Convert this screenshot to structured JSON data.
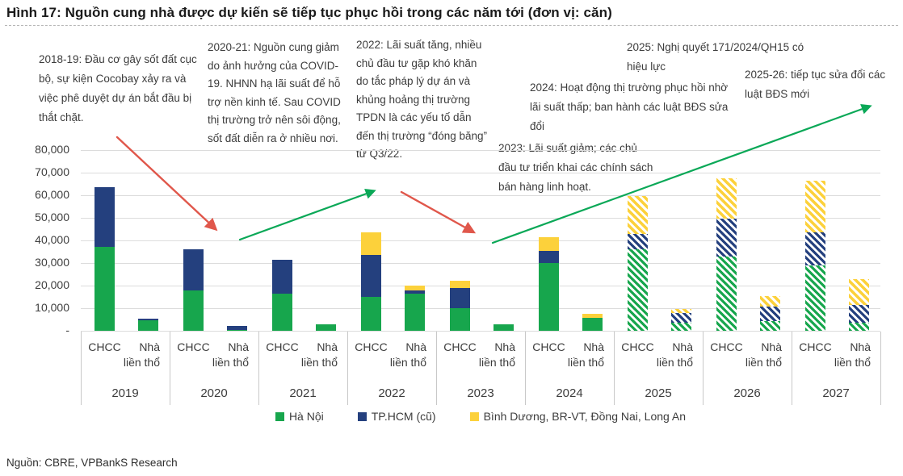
{
  "title": "Hình 17: Nguồn cung nhà được dự kiến sẽ tiếp tục phục hồi trong các năm tới (đơn vị: căn)",
  "source": "Nguồn: CBRE, VPBankS Research",
  "annotations": [
    {
      "text": "2018-19: Đầu cơ gây sốt đất cục bộ, sự kiện Cocobay xảy ra và việc phê duyệt dự án bắt đầu bị thắt chặt."
    },
    {
      "text": "2020-21: Nguồn cung giảm do ảnh hưởng của COVID-19. NHNN hạ lãi suất để hỗ trợ nền kinh tế. Sau COVID thị trường trở nên sôi động, sốt đất diễn ra ở nhiều nơi."
    },
    {
      "text": "2022: Lãi suất tăng, nhiều chủ đầu tư gặp khó khăn do tắc pháp lý dự án và khủng hoảng thị trường TPDN là các yếu tố dẫn đến thị trường “đóng băng” từ Q3/22."
    },
    {
      "text": "2023: Lãi suất giảm; các chủ đầu tư triển khai các chính sách bán hàng linh hoạt."
    },
    {
      "text": "2024: Hoạt động thị trường phục hồi nhờ lãi suất thấp; ban hành các luật BĐS sửa đổi"
    },
    {
      "text": "2025: Nghị quyết 171/2024/QH15 có hiệu lực"
    },
    {
      "text": "2025-26: tiếp tục sửa đổi các luật BĐS mới"
    }
  ],
  "arrows": [
    {
      "color": "#e0574b",
      "direction": "down"
    },
    {
      "color": "#0aa857",
      "direction": "up"
    },
    {
      "color": "#e0574b",
      "direction": "down"
    },
    {
      "color": "#0aa857",
      "direction": "up"
    }
  ],
  "chart_data": {
    "type": "bar",
    "stacked": true,
    "unit": "căn",
    "title": "Nguồn cung nhà được dự kiến sẽ tiếp tục phục hồi trong các năm tới",
    "ylim": [
      0,
      80000
    ],
    "grid": true,
    "legend_position": "bottom",
    "y_ticks": [
      "80,000",
      "70,000",
      "60,000",
      "50,000",
      "40,000",
      "30,000",
      "20,000",
      "10,000",
      "-"
    ],
    "bar_labels": [
      "CHCC",
      "Nhà liền thổ"
    ],
    "series": [
      {
        "name": "Hà Nội",
        "color": "#17a64d"
      },
      {
        "name": "TP.HCM (cũ)",
        "color": "#24407e"
      },
      {
        "name": "Bình Dương, BR-VT, Đồng Nai, Long An",
        "color": "#fcd13b"
      }
    ],
    "groups": [
      {
        "year": "2019",
        "forecast": false,
        "bars": [
          {
            "label": "CHCC",
            "values": [
              37000,
              26500,
              0
            ]
          },
          {
            "label": "Nhà liền thổ",
            "values": [
              4500,
              800,
              0
            ]
          }
        ]
      },
      {
        "year": "2020",
        "forecast": false,
        "bars": [
          {
            "label": "CHCC",
            "values": [
              18000,
              18000,
              0
            ]
          },
          {
            "label": "Nhà liền thổ",
            "values": [
              500,
              1600,
              0
            ]
          }
        ]
      },
      {
        "year": "2021",
        "forecast": false,
        "bars": [
          {
            "label": "CHCC",
            "values": [
              16500,
              15000,
              0
            ]
          },
          {
            "label": "Nhà liền thổ",
            "values": [
              2800,
              0,
              0
            ]
          }
        ]
      },
      {
        "year": "2022",
        "forecast": false,
        "bars": [
          {
            "label": "CHCC",
            "values": [
              15000,
              18500,
              10000
            ]
          },
          {
            "label": "Nhà liền thổ",
            "values": [
              16500,
              1500,
              2000
            ]
          }
        ]
      },
      {
        "year": "2023",
        "forecast": false,
        "bars": [
          {
            "label": "CHCC",
            "values": [
              10000,
              9000,
              3000
            ]
          },
          {
            "label": "Nhà liền thổ",
            "values": [
              2800,
              0,
              0
            ]
          }
        ]
      },
      {
        "year": "2024",
        "forecast": false,
        "bars": [
          {
            "label": "CHCC",
            "values": [
              30000,
              5500,
              5800
            ]
          },
          {
            "label": "Nhà liền thổ",
            "values": [
              5700,
              0,
              1700
            ]
          }
        ]
      },
      {
        "year": "2025",
        "forecast": true,
        "bars": [
          {
            "label": "CHCC",
            "values": [
              36000,
              7000,
              16500
            ]
          },
          {
            "label": "Nhà liền thổ",
            "values": [
              3500,
              4400,
              1700
            ]
          }
        ]
      },
      {
        "year": "2026",
        "forecast": true,
        "bars": [
          {
            "label": "CHCC",
            "values": [
              33000,
              16500,
              18000
            ]
          },
          {
            "label": "Nhà liền thổ",
            "values": [
              4200,
              6500,
              4800
            ]
          }
        ]
      },
      {
        "year": "2027",
        "forecast": true,
        "bars": [
          {
            "label": "CHCC",
            "values": [
              29000,
              14500,
              23000
            ]
          },
          {
            "label": "Nhà liền thổ",
            "values": [
              3500,
              7800,
              11400
            ]
          }
        ]
      }
    ]
  }
}
